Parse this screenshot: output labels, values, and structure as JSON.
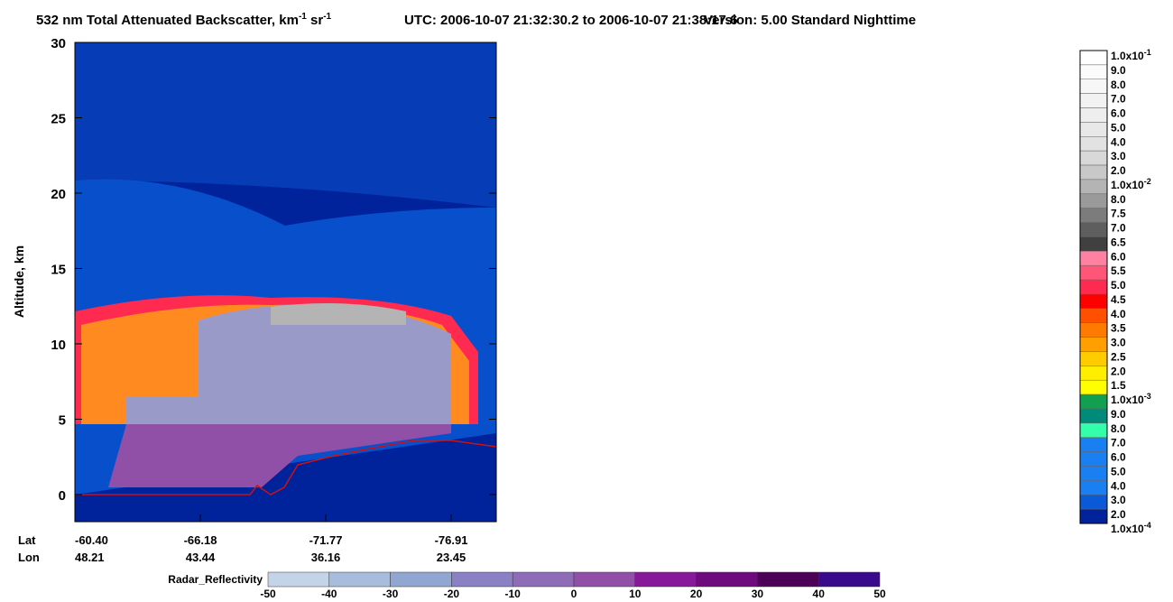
{
  "chart_data": {
    "type": "curtain",
    "title_parts": [
      "532 nm Total Attenuated Backscatter, km",
      "-1",
      " sr",
      "-1"
    ],
    "utc": "UTC:  2006-10-07 21:32:30.2  to  2006-10-07 21:38:17.6",
    "version": "Version: 5.00  Standard  Nighttime",
    "ylabel": "Altitude, km",
    "ylim": [
      -1.8,
      30
    ],
    "yticks": [
      0,
      5,
      10,
      15,
      20,
      25,
      30
    ],
    "x_row_names": [
      "Lat",
      "Lon"
    ],
    "lat": [
      "-60.40",
      "-66.18",
      "-71.77",
      "-76.91"
    ],
    "lon": [
      "48.21",
      "43.44",
      "36.16",
      "23.45"
    ],
    "colorbar": {
      "labels": [
        {
          "text": "1.0x10",
          "sup": "-1"
        },
        "9.0",
        "8.0",
        "7.0",
        "6.0",
        "5.0",
        "4.0",
        "3.0",
        "2.0",
        {
          "text": "1.0x10",
          "sup": "-2"
        },
        "8.0",
        "7.5",
        "7.0",
        "6.5",
        "6.0",
        "5.5",
        "5.0",
        "4.5",
        "4.0",
        "3.5",
        "3.0",
        "2.5",
        "2.0",
        "1.5",
        {
          "text": "1.0x10",
          "sup": "-3"
        },
        "9.0",
        "8.0",
        "7.0",
        "6.0",
        "5.0",
        "4.0",
        "3.0",
        "2.0",
        {
          "text": "1.0x10",
          "sup": "-4"
        }
      ],
      "colors": [
        "#ffffff",
        "#fbfbfb",
        "#f7f7f7",
        "#f2f2f2",
        "#eeeeee",
        "#e8e8e8",
        "#e2e2e2",
        "#d8d8d8",
        "#c8c8c8",
        "#b4b4b4",
        "#9a9a9a",
        "#7c7c7c",
        "#5e5e5e",
        "#404040",
        "#ff80a0",
        "#ff5577",
        "#ff2a50",
        "#ff0000",
        "#ff5000",
        "#ff7a00",
        "#ffa000",
        "#ffcc00",
        "#ffee00",
        "#ffff00",
        "#10a050",
        "#008a7a",
        "#33ffaa",
        "#1a7ff0",
        "#1a7ff0",
        "#1a7ff0",
        "#1a7ff0",
        "#0a5ad8",
        "#00239c"
      ]
    },
    "radar": {
      "label": "Radar_Reflectivity",
      "ticks": [
        -50,
        -40,
        -30,
        -20,
        -10,
        0,
        10,
        20,
        30,
        40,
        50
      ],
      "colors": [
        "#c4d4e8",
        "#a8bcdc",
        "#92a6d2",
        "#8a80c4",
        "#8e6cb8",
        "#9050a8",
        "#88189a",
        "#6e0a7e",
        "#4c0058",
        "#3a0a8c"
      ]
    }
  }
}
